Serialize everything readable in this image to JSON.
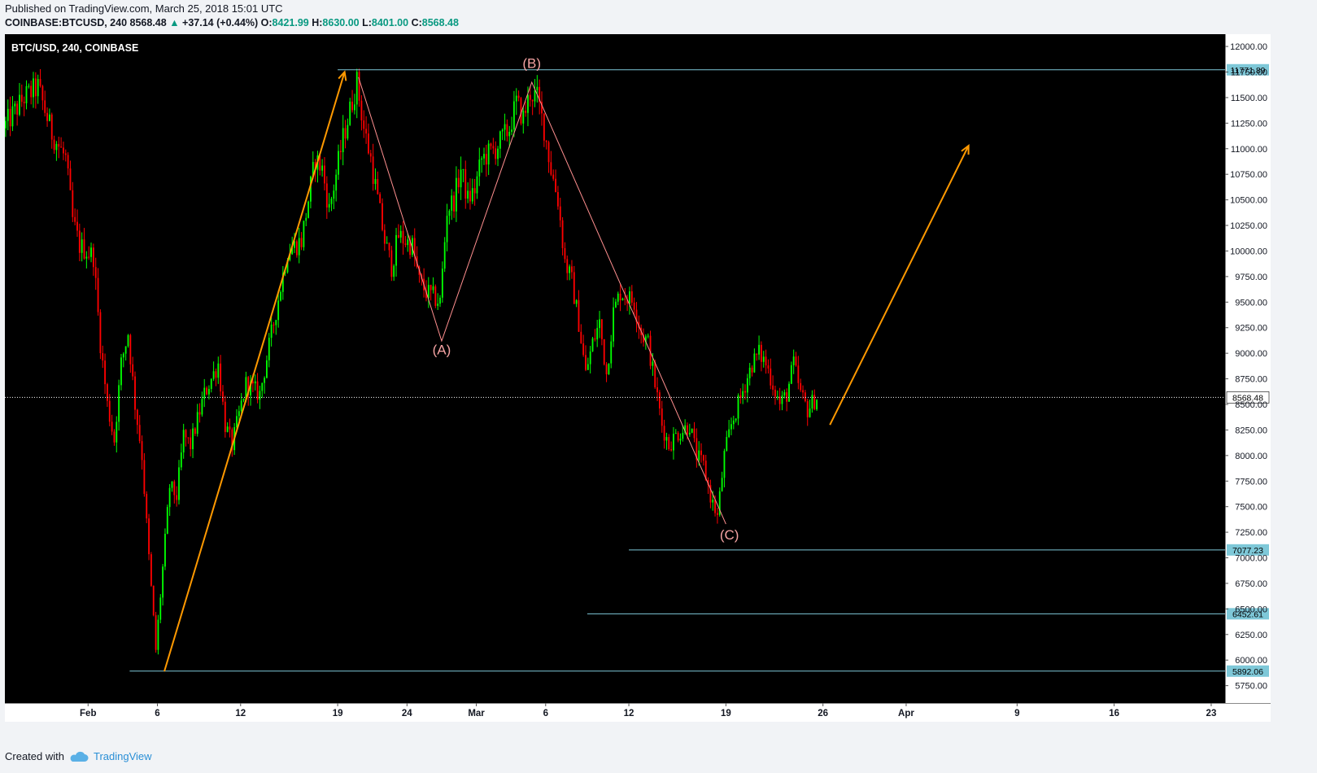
{
  "header": {
    "published": "Published on TradingView.com, March 25, 2018 15:01 UTC",
    "symbol": "COINBASE:BTCUSD, 240",
    "last": "8568.48",
    "change": "+37.14 (+0.44%)",
    "open_label": "O:",
    "open": "8421.99",
    "high_label": "H:",
    "high": "8630.00",
    "low_label": "L:",
    "low": "8401.00",
    "close_label": "C:",
    "close": "8568.48"
  },
  "chart_title": "BTC/USD, 240, COINBASE",
  "footer": {
    "created_with": "Created with",
    "brand": "TradingView"
  },
  "colors": {
    "background": "#000000",
    "up": "#00ff00",
    "down": "#ff0000",
    "level_line": "#7ec8d8",
    "arrow": "#ff9900",
    "wave_line": "#ff8f8f",
    "wave_label": "#f5a3a3"
  },
  "chart_data": {
    "type": "candlestick",
    "interval_minutes": 240,
    "x_range": [
      "2018-01-26",
      "2018-04-24"
    ],
    "y_range": [
      5580,
      12120
    ],
    "y_ticks": [
      5750,
      6000,
      6250,
      6500,
      6750,
      7000,
      7250,
      7500,
      7750,
      8000,
      8250,
      8500,
      8750,
      9000,
      9250,
      9500,
      9750,
      10000,
      10250,
      10500,
      10750,
      11000,
      11250,
      11500,
      11750,
      12000
    ],
    "x_ticks": [
      {
        "date": "2018-02-01",
        "label": "Feb"
      },
      {
        "date": "2018-02-06",
        "label": "6"
      },
      {
        "date": "2018-02-12",
        "label": "12"
      },
      {
        "date": "2018-02-19",
        "label": "19"
      },
      {
        "date": "2018-02-24",
        "label": "24"
      },
      {
        "date": "2018-03-01",
        "label": "Mar"
      },
      {
        "date": "2018-03-06",
        "label": "6"
      },
      {
        "date": "2018-03-12",
        "label": "12"
      },
      {
        "date": "2018-03-19",
        "label": "19"
      },
      {
        "date": "2018-03-26",
        "label": "26"
      },
      {
        "date": "2018-04-01",
        "label": "Apr"
      },
      {
        "date": "2018-04-09",
        "label": "9"
      },
      {
        "date": "2018-04-16",
        "label": "16"
      },
      {
        "date": "2018-04-23",
        "label": "23"
      }
    ],
    "current_price": 8568.48,
    "levels": [
      {
        "value": 11771.89,
        "label": "11771.89",
        "from": "2018-02-19"
      },
      {
        "value": 7077.23,
        "label": "7077.23",
        "from": "2018-03-12"
      },
      {
        "value": 6452.61,
        "label": "6452.61",
        "from": "2018-03-09"
      },
      {
        "value": 5892.06,
        "label": "5892.06",
        "from": "2018-02-04"
      }
    ],
    "waves": [
      {
        "x": "2018-02-20T12:00",
        "y": 11700
      },
      {
        "x": "2018-02-26T12:00",
        "y": 9120
      },
      {
        "x": "2018-03-05T00:00",
        "y": 11650
      },
      {
        "x": "2018-03-19T00:00",
        "y": 7330
      }
    ],
    "wave_labels": [
      {
        "text": "(A)",
        "x": "2018-02-26T12:00",
        "y": 8990
      },
      {
        "text": "(B)",
        "x": "2018-03-05T00:00",
        "y": 11790
      },
      {
        "text": "(C)",
        "x": "2018-03-19T06:00",
        "y": 7180
      }
    ],
    "arrows": [
      {
        "from": {
          "x": "2018-02-06T12:00",
          "y": 5890
        },
        "to": {
          "x": "2018-02-19T12:00",
          "y": 11750
        }
      },
      {
        "from": {
          "x": "2018-03-26T12:00",
          "y": 8300
        },
        "to": {
          "x": "2018-04-05T12:00",
          "y": 11030
        }
      }
    ],
    "price_path": [
      [
        "2018-01-26T00:00",
        11200
      ],
      [
        "2018-01-27T12:00",
        11500
      ],
      [
        "2018-01-28T12:00",
        11600
      ],
      [
        "2018-01-29T12:00",
        11150
      ],
      [
        "2018-01-30T12:00",
        10900
      ],
      [
        "2018-01-31T00:00",
        10300
      ],
      [
        "2018-01-31T12:00",
        10050
      ],
      [
        "2018-02-01T12:00",
        9950
      ],
      [
        "2018-02-02T00:00",
        9100
      ],
      [
        "2018-02-02T12:00",
        8500
      ],
      [
        "2018-02-03T00:00",
        8150
      ],
      [
        "2018-02-03T12:00",
        8900
      ],
      [
        "2018-02-04T00:00",
        9200
      ],
      [
        "2018-02-04T12:00",
        8500
      ],
      [
        "2018-02-05T00:00",
        8000
      ],
      [
        "2018-02-05T12:00",
        7000
      ],
      [
        "2018-02-06T00:00",
        6100
      ],
      [
        "2018-02-06T12:00",
        6900
      ],
      [
        "2018-02-07T00:00",
        7700
      ],
      [
        "2018-02-07T12:00",
        7600
      ],
      [
        "2018-02-08T00:00",
        8200
      ],
      [
        "2018-02-08T12:00",
        8100
      ],
      [
        "2018-02-09T12:00",
        8600
      ],
      [
        "2018-02-10T12:00",
        8900
      ],
      [
        "2018-02-11T00:00",
        8300
      ],
      [
        "2018-02-11T12:00",
        8100
      ],
      [
        "2018-02-12T12:00",
        8700
      ],
      [
        "2018-02-13T12:00",
        8600
      ],
      [
        "2018-02-14T12:00",
        9300
      ],
      [
        "2018-02-15T12:00",
        10000
      ],
      [
        "2018-02-16T12:00",
        10100
      ],
      [
        "2018-02-17T12:00",
        10900
      ],
      [
        "2018-02-18T00:00",
        10800
      ],
      [
        "2018-02-18T12:00",
        10400
      ],
      [
        "2018-02-19T12:00",
        11100
      ],
      [
        "2018-02-20T12:00",
        11650
      ],
      [
        "2018-02-21T00:00",
        11200
      ],
      [
        "2018-02-21T12:00",
        10900
      ],
      [
        "2018-02-22T00:00",
        10500
      ],
      [
        "2018-02-22T12:00",
        10100
      ],
      [
        "2018-02-23T00:00",
        9850
      ],
      [
        "2018-02-23T12:00",
        10150
      ],
      [
        "2018-02-24T12:00",
        10050
      ],
      [
        "2018-02-25T00:00",
        9700
      ],
      [
        "2018-02-25T12:00",
        9600
      ],
      [
        "2018-02-26T12:00",
        9500
      ],
      [
        "2018-02-27T00:00",
        10400
      ],
      [
        "2018-02-27T12:00",
        10500
      ],
      [
        "2018-02-28T00:00",
        10800
      ],
      [
        "2018-02-28T12:00",
        10500
      ],
      [
        "2018-03-01T00:00",
        10600
      ],
      [
        "2018-03-01T12:00",
        10900
      ],
      [
        "2018-03-02T12:00",
        11000
      ],
      [
        "2018-03-03T12:00",
        11200
      ],
      [
        "2018-03-04T00:00",
        11450
      ],
      [
        "2018-03-04T12:00",
        11300
      ],
      [
        "2018-03-05T00:00",
        11550
      ],
      [
        "2018-03-05T12:00",
        11500
      ],
      [
        "2018-03-06T00:00",
        11200
      ],
      [
        "2018-03-06T12:00",
        10800
      ],
      [
        "2018-03-07T00:00",
        10500
      ],
      [
        "2018-03-07T12:00",
        9900
      ],
      [
        "2018-03-08T00:00",
        9700
      ],
      [
        "2018-03-08T12:00",
        9300
      ],
      [
        "2018-03-09T00:00",
        8800
      ],
      [
        "2018-03-09T12:00",
        9100
      ],
      [
        "2018-03-10T00:00",
        9300
      ],
      [
        "2018-03-10T12:00",
        8800
      ],
      [
        "2018-03-11T00:00",
        9400
      ],
      [
        "2018-03-11T12:00",
        9600
      ],
      [
        "2018-03-12T12:00",
        9500
      ],
      [
        "2018-03-13T00:00",
        9200
      ],
      [
        "2018-03-13T12:00",
        9100
      ],
      [
        "2018-03-14T12:00",
        8300
      ],
      [
        "2018-03-15T00:00",
        8100
      ],
      [
        "2018-03-15T12:00",
        8200
      ],
      [
        "2018-03-16T12:00",
        8300
      ],
      [
        "2018-03-17T00:00",
        8000
      ],
      [
        "2018-03-17T12:00",
        7900
      ],
      [
        "2018-03-18T00:00",
        7600
      ],
      [
        "2018-03-18T12:00",
        7400
      ],
      [
        "2018-03-19T00:00",
        8000
      ],
      [
        "2018-03-19T12:00",
        8300
      ],
      [
        "2018-03-20T00:00",
        8500
      ],
      [
        "2018-03-20T12:00",
        8700
      ],
      [
        "2018-03-21T00:00",
        8900
      ],
      [
        "2018-03-21T12:00",
        9000
      ],
      [
        "2018-03-22T00:00",
        8900
      ],
      [
        "2018-03-22T12:00",
        8700
      ],
      [
        "2018-03-23T00:00",
        8500
      ],
      [
        "2018-03-23T12:00",
        8600
      ],
      [
        "2018-03-24T00:00",
        8900
      ],
      [
        "2018-03-24T12:00",
        8600
      ],
      [
        "2018-03-25T00:00",
        8450
      ],
      [
        "2018-03-25T15:00",
        8568.48
      ]
    ]
  }
}
